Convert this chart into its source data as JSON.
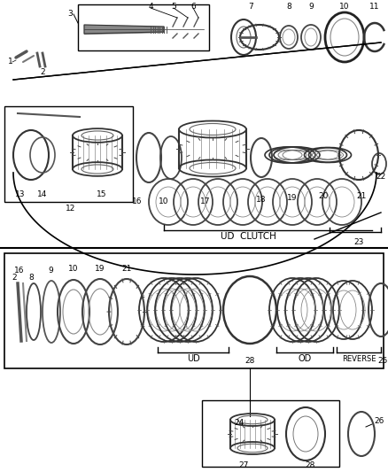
{
  "bg_color": "#ffffff",
  "line_color": "#000000",
  "gray_color": "#888888",
  "dark_gray": "#444444",
  "mid_gray": "#999999",
  "label_fontsize": 6.5,
  "ud_clutch_label": "UD  CLUTCH",
  "ud_label": "UD",
  "od_label": "OD",
  "reverse_label": "REVERSE",
  "fig_width": 4.38,
  "fig_height": 5.33,
  "dpi": 100
}
